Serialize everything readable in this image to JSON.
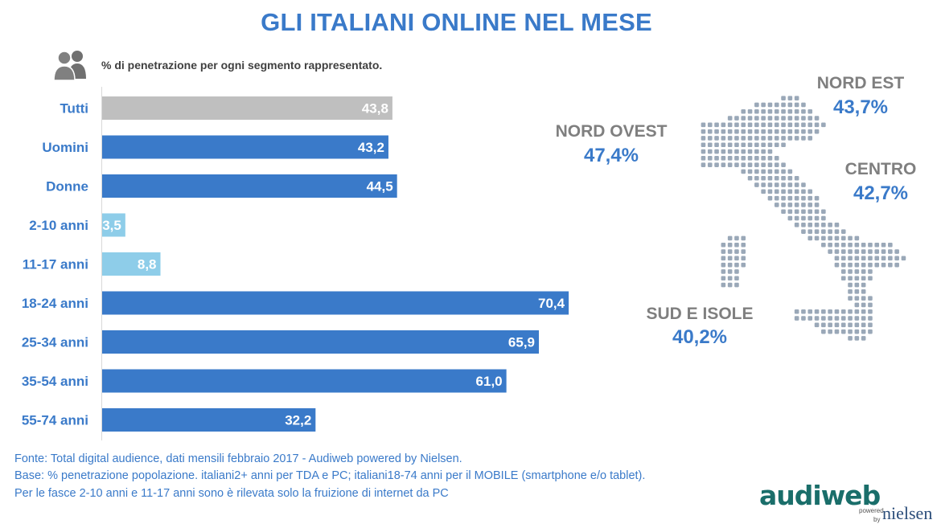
{
  "title": "GLI ITALIANI ONLINE NEL MESE",
  "subtitle": "% di penetrazione per ogni segmento rappresentato.",
  "colors": {
    "accent": "#3a7ac9",
    "total_bar": "#bfbfbf",
    "light_bar": "#8ecde9",
    "label_grey": "#7f7f7f",
    "map_dot": "#9aa8b8"
  },
  "chart_data": {
    "type": "bar",
    "orientation": "horizontal",
    "categories": [
      "Tutti",
      "Uomini",
      "Donne",
      "2-10 anni",
      "11-17 anni",
      "18-24 anni",
      "25-34 anni",
      "35-54 anni",
      "55-74 anni"
    ],
    "values": [
      43.8,
      43.2,
      44.5,
      3.5,
      8.8,
      70.4,
      65.9,
      61.0,
      32.2
    ],
    "value_labels": [
      "43,8",
      "43,2",
      "44,5",
      "3,5",
      "8,8",
      "70,4",
      "65,9",
      "61,0",
      "32,2"
    ],
    "bar_colors": [
      "#bfbfbf",
      "#3a7ac9",
      "#3a7ac9",
      "#8ecde9",
      "#8ecde9",
      "#3a7ac9",
      "#3a7ac9",
      "#3a7ac9",
      "#3a7ac9"
    ],
    "xlim": [
      0,
      100
    ],
    "grid": false,
    "legend": "none"
  },
  "regions": [
    {
      "name": "NORD EST",
      "value": "43,7%"
    },
    {
      "name": "NORD OVEST",
      "value": "47,4%"
    },
    {
      "name": "CENTRO",
      "value": "42,7%"
    },
    {
      "name": "SUD E ISOLE",
      "value": "40,2%"
    }
  ],
  "icons": {
    "segment": "people-icon",
    "map": "italy-map-icon"
  },
  "footer": {
    "line1": "Fonte: Total digital audience, dati mensili febbraio 2017 - Audiweb powered by Nielsen.",
    "line2": "Base: % penetrazione popolazione. italiani2+ anni per TDA e PC; italiani18-74 anni per il MOBILE (smartphone e/o tablet).",
    "line3": "Per le fasce 2-10 anni e 11-17 anni sono è rilevata solo la fruizione di internet da PC"
  },
  "logo": {
    "brand": "audiweb",
    "powered": "powered",
    "by": "by",
    "partner": "nielsen"
  }
}
